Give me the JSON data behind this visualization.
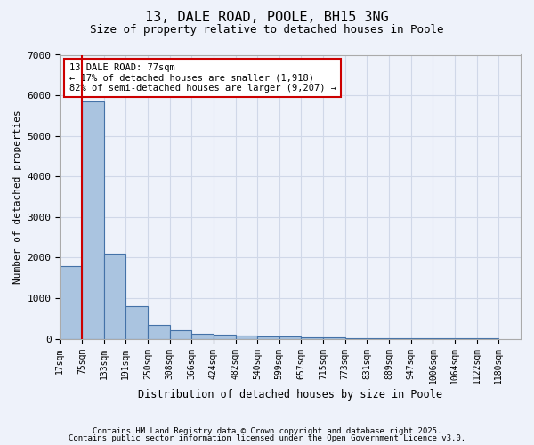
{
  "title1": "13, DALE ROAD, POOLE, BH15 3NG",
  "title2": "Size of property relative to detached houses in Poole",
  "xlabel": "Distribution of detached houses by size in Poole",
  "ylabel": "Number of detached properties",
  "bin_labels": [
    "17sqm",
    "75sqm",
    "133sqm",
    "191sqm",
    "250sqm",
    "308sqm",
    "366sqm",
    "424sqm",
    "482sqm",
    "540sqm",
    "599sqm",
    "657sqm",
    "715sqm",
    "773sqm",
    "831sqm",
    "889sqm",
    "947sqm",
    "1006sqm",
    "1064sqm",
    "1122sqm",
    "1180sqm"
  ],
  "bar_values": [
    1800,
    5850,
    2100,
    800,
    350,
    200,
    130,
    95,
    75,
    60,
    48,
    38,
    30,
    22,
    15,
    10,
    8,
    5,
    4,
    3
  ],
  "bar_color": "#aac4e0",
  "bar_edge_color": "#4472a8",
  "annotation_text": "13 DALE ROAD: 77sqm\n← 17% of detached houses are smaller (1,918)\n82% of semi-detached houses are larger (9,207) →",
  "annotation_box_color": "#ffffff",
  "annotation_edge_color": "#cc0000",
  "vertical_line_color": "#cc0000",
  "ylim": [
    0,
    7000
  ],
  "yticks": [
    0,
    1000,
    2000,
    3000,
    4000,
    5000,
    6000,
    7000
  ],
  "grid_color": "#d0d8e8",
  "background_color": "#eef2fa",
  "footnote1": "Contains HM Land Registry data © Crown copyright and database right 2025.",
  "footnote2": "Contains public sector information licensed under the Open Government Licence v3.0."
}
